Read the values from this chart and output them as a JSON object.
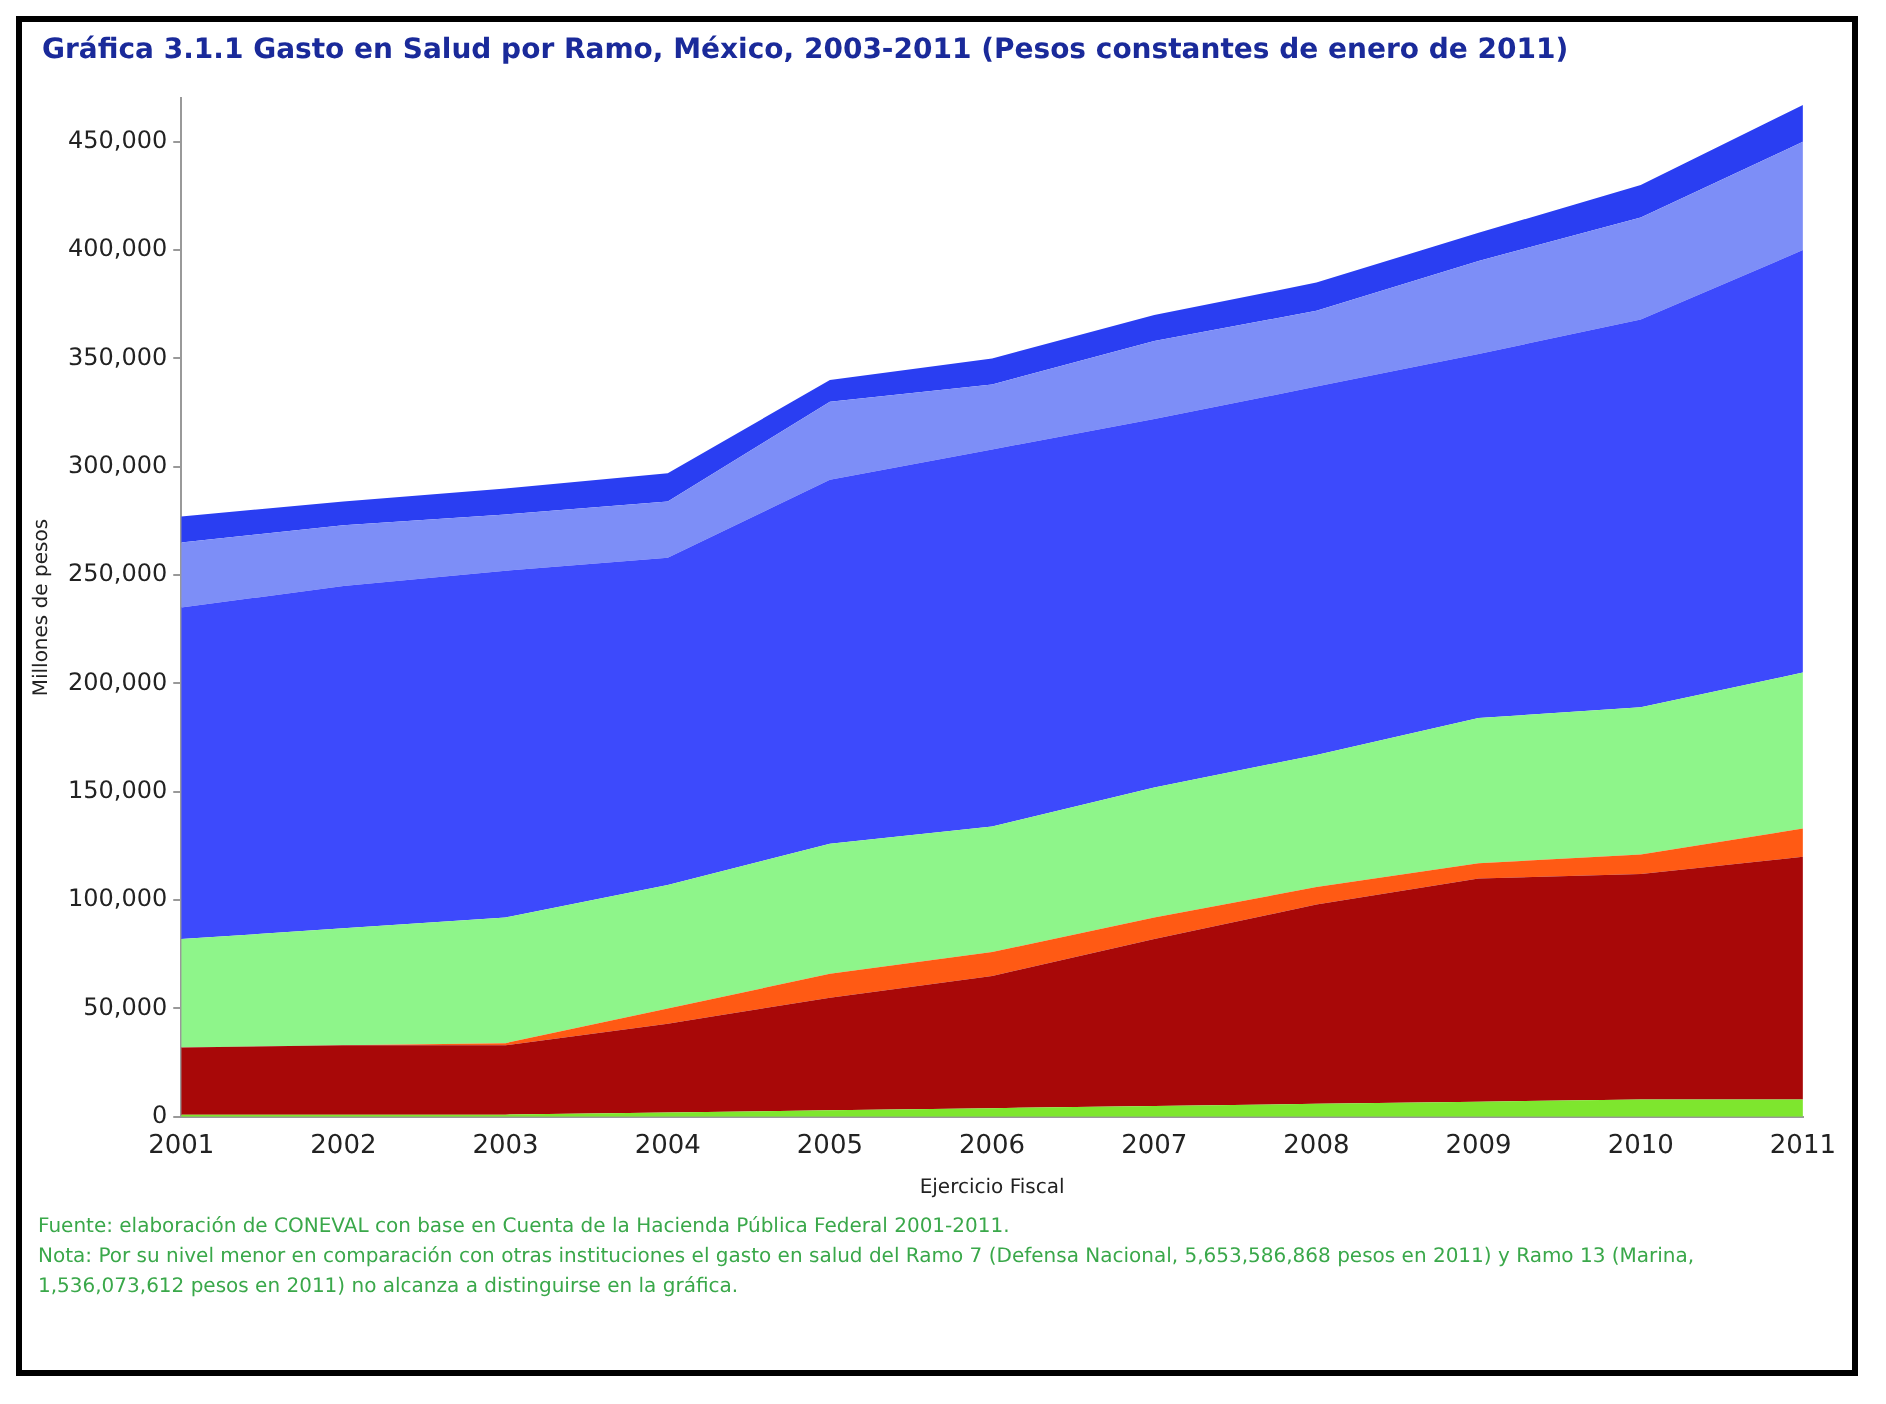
{
  "chart_data": {
    "type": "area",
    "title": "Gráfica 3.1.1 Gasto en Salud por Ramo, México, 2003-2011 (Pesos constantes de enero de 2011)",
    "xlabel": "Ejercicio Fiscal",
    "ylabel": "Millones de pesos",
    "categories": [
      "2001",
      "2002",
      "2003",
      "2004",
      "2005",
      "2006",
      "2007",
      "2008",
      "2009",
      "2010",
      "2011"
    ],
    "stacked": true,
    "grid": false,
    "legend": false,
    "ylim": [
      0,
      470000
    ],
    "yticks": [
      {
        "value": 0,
        "label": "0"
      },
      {
        "value": 50000,
        "label": "50,000"
      },
      {
        "value": 100000,
        "label": "100,000"
      },
      {
        "value": 150000,
        "label": "150,000"
      },
      {
        "value": 200000,
        "label": "200,000"
      },
      {
        "value": 250000,
        "label": "250,000"
      },
      {
        "value": 300000,
        "label": "300,000"
      },
      {
        "value": 350000,
        "label": "350,000"
      },
      {
        "value": 400000,
        "label": "400,000"
      },
      {
        "value": 450000,
        "label": "450,000"
      }
    ],
    "series": [
      {
        "color": "#7ee62e",
        "values": [
          1000,
          1000,
          1000,
          2000,
          3000,
          4000,
          5000,
          6000,
          7000,
          8000,
          8000
        ]
      },
      {
        "color": "#a80808",
        "values": [
          31000,
          32000,
          32000,
          41000,
          52000,
          61000,
          77000,
          92000,
          103000,
          104000,
          112000
        ]
      },
      {
        "color": "#ff5a14",
        "values": [
          0,
          0,
          1000,
          7000,
          11000,
          11000,
          10000,
          8000,
          7000,
          9000,
          13000
        ]
      },
      {
        "color": "#8ef58a",
        "values": [
          50000,
          54000,
          58000,
          57000,
          60000,
          58000,
          60000,
          61000,
          67000,
          68000,
          72000
        ]
      },
      {
        "color": "#3d4afc",
        "values": [
          153000,
          158000,
          160000,
          151000,
          168000,
          174000,
          170000,
          170000,
          168000,
          179000,
          195000
        ]
      },
      {
        "color": "#7d8ef7",
        "values": [
          30000,
          28000,
          26000,
          26000,
          36000,
          30000,
          36000,
          35000,
          43000,
          47000,
          50000
        ]
      },
      {
        "color": "#2a3ef2",
        "values": [
          12000,
          11000,
          12000,
          13000,
          10000,
          12000,
          12000,
          13000,
          13000,
          15000,
          17000
        ]
      }
    ],
    "annotations": [
      "Fuente: elaboración de CONEVAL con base en Cuenta de la Hacienda Pública Federal 2001-2011.",
      "Nota: Por su nivel menor en comparación con otras instituciones el gasto en salud del Ramo 7 (Defensa Nacional, 5,653,586,868 pesos en 2011) y Ramo 13 (Marina, 1,536,073,612 pesos en 2011) no alcanza a distinguirse en la gráfica."
    ]
  }
}
